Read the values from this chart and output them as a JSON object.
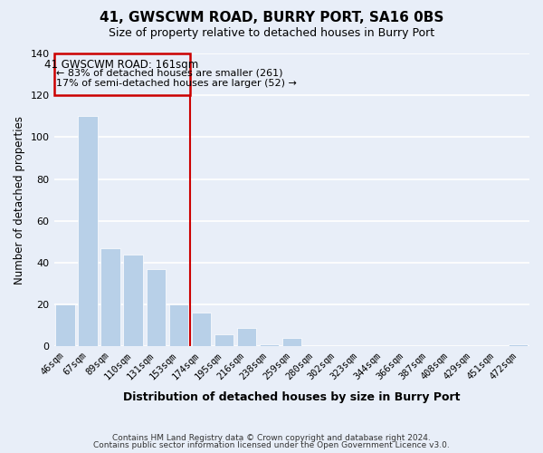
{
  "title": "41, GWSCWM ROAD, BURRY PORT, SA16 0BS",
  "subtitle": "Size of property relative to detached houses in Burry Port",
  "xlabel": "Distribution of detached houses by size in Burry Port",
  "ylabel": "Number of detached properties",
  "bar_labels": [
    "46sqm",
    "67sqm",
    "89sqm",
    "110sqm",
    "131sqm",
    "153sqm",
    "174sqm",
    "195sqm",
    "216sqm",
    "238sqm",
    "259sqm",
    "280sqm",
    "302sqm",
    "323sqm",
    "344sqm",
    "366sqm",
    "387sqm",
    "408sqm",
    "429sqm",
    "451sqm",
    "472sqm"
  ],
  "bar_values": [
    20,
    110,
    47,
    44,
    37,
    20,
    16,
    6,
    9,
    1,
    4,
    0,
    0,
    0,
    0,
    0,
    0,
    0,
    0,
    0,
    1
  ],
  "bar_color": "#b8d0e8",
  "bar_edge_color": "#b8d0e8",
  "vline_x": 5.5,
  "vline_color": "#cc0000",
  "annotation_title": "41 GWSCWM ROAD: 161sqm",
  "annotation_line1": "← 83% of detached houses are smaller (261)",
  "annotation_line2": "17% of semi-detached houses are larger (52) →",
  "box_edge_color": "#cc0000",
  "ylim": [
    0,
    140
  ],
  "yticks": [
    0,
    20,
    40,
    60,
    80,
    100,
    120,
    140
  ],
  "footnote1": "Contains HM Land Registry data © Crown copyright and database right 2024.",
  "footnote2": "Contains public sector information licensed under the Open Government Licence v3.0.",
  "bg_color": "#e8eef8",
  "grid_color": "#ffffff"
}
